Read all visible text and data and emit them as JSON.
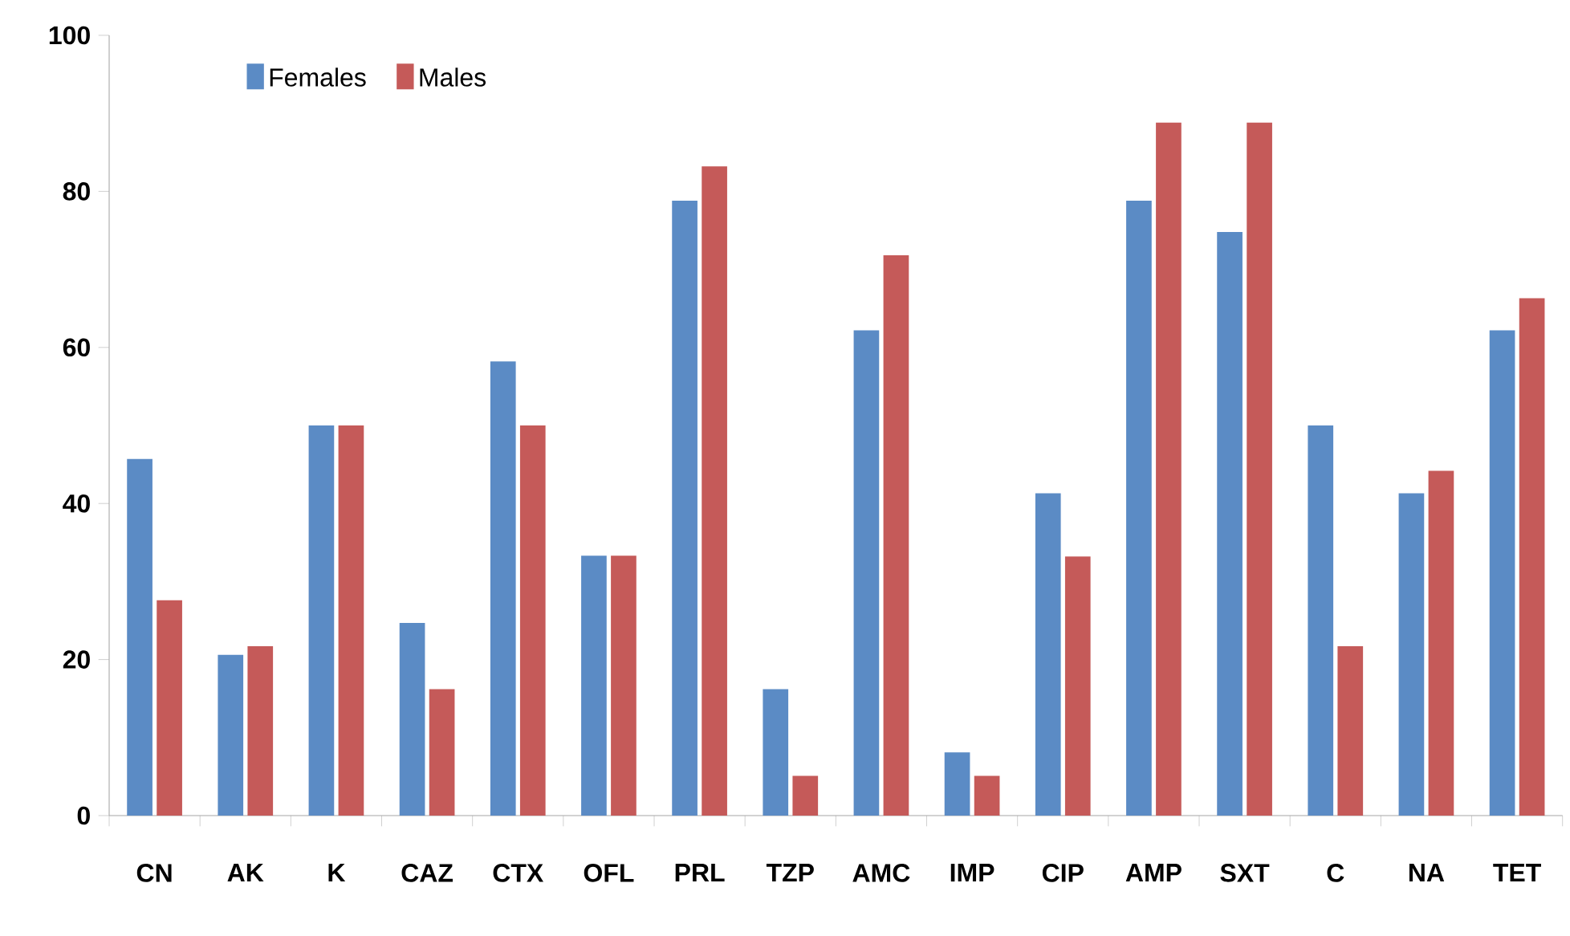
{
  "chart_data": {
    "type": "bar",
    "categories": [
      "CN",
      "AK",
      "K",
      "CAZ",
      "CTX",
      "OFL",
      "PRL",
      "TZP",
      "AMC",
      "IMP",
      "CIP",
      "AMP",
      "SXT",
      "C",
      "NA",
      "TET"
    ],
    "series": [
      {
        "name": "Females",
        "color": "#5b8bc5",
        "values": [
          45.7,
          20.6,
          50,
          24.7,
          58.2,
          33.3,
          78.8,
          16.2,
          62.2,
          8.1,
          41.3,
          78.8,
          74.8,
          50,
          41.3,
          62.2
        ]
      },
      {
        "name": "Males",
        "color": "#c55a59",
        "values": [
          27.6,
          21.7,
          50,
          16.2,
          50,
          33.3,
          83.2,
          5.1,
          71.8,
          5.1,
          33.2,
          88.8,
          88.8,
          21.7,
          44.2,
          66.3
        ]
      }
    ],
    "ylim": [
      0,
      100
    ],
    "yticks": [
      0,
      20,
      40,
      60,
      80,
      100
    ],
    "grid": false,
    "legend": "top left"
  }
}
